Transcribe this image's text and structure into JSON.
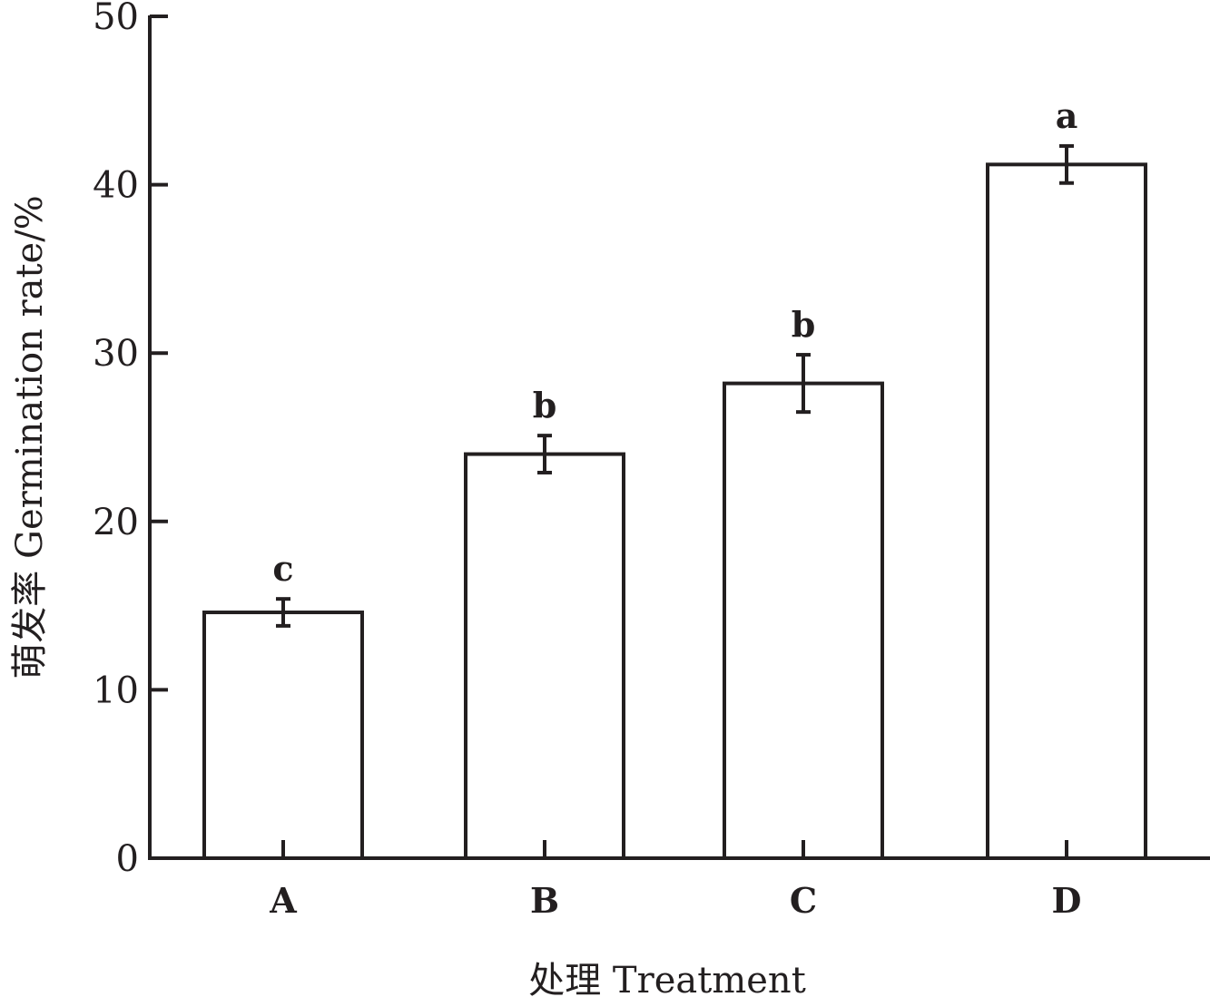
{
  "chart_data": {
    "type": "bar",
    "title": "",
    "xlabel": "处理 Treatment",
    "ylabel": "萌发率 Germination rate/%",
    "categories": [
      "A",
      "B",
      "C",
      "D"
    ],
    "values": [
      14.6,
      24.0,
      28.2,
      41.2
    ],
    "errors": [
      0.8,
      1.1,
      1.7,
      1.1
    ],
    "significance": [
      "c",
      "b",
      "b",
      "a"
    ],
    "ylim": [
      0,
      50
    ],
    "yticks": [
      0,
      10,
      20,
      30,
      40,
      50
    ],
    "grid": false,
    "colors": {
      "bar_fill": "#ffffff",
      "stroke": "#231f20"
    }
  }
}
